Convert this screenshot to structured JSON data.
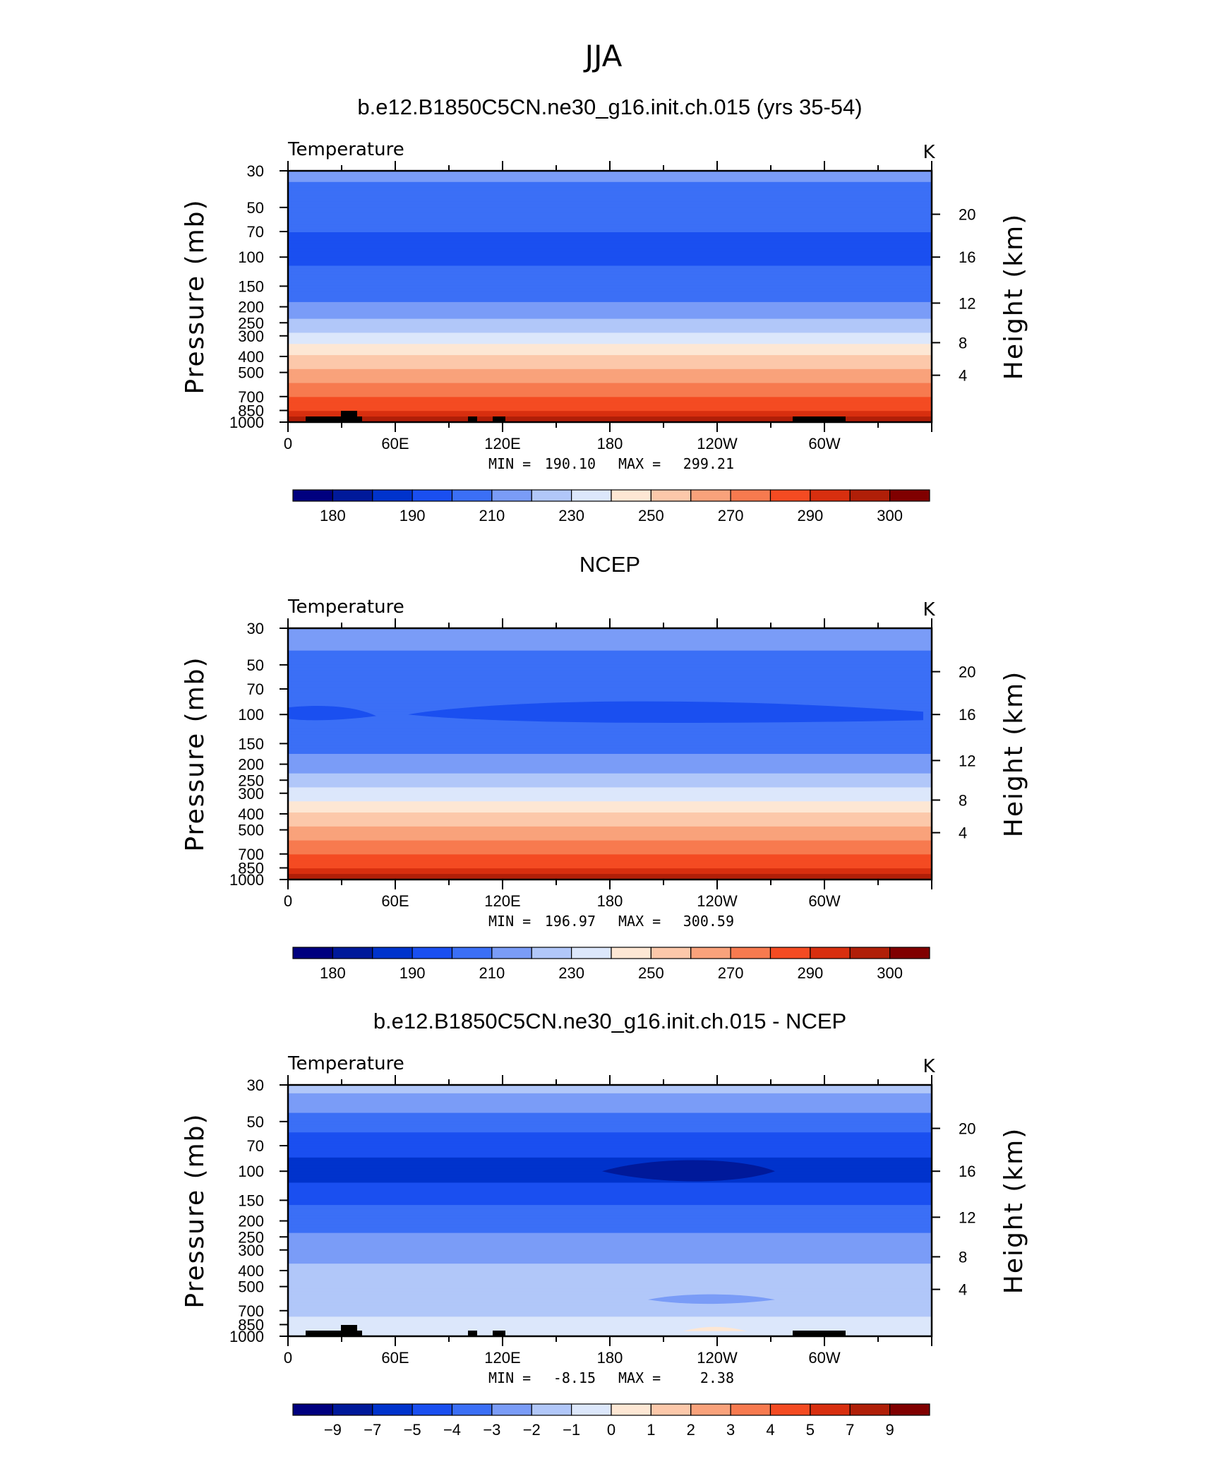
{
  "title": "JJA",
  "colors": {
    "levels": [
      "#00007f",
      "#00199a",
      "#0033cc",
      "#1a4ff0",
      "#3b6ff6",
      "#7a9cf7",
      "#b1c7f9",
      "#dce7fb",
      "#fde7d4",
      "#fcc8aa",
      "#f9a27b",
      "#f77a4f",
      "#f44b22",
      "#d82f0f",
      "#b01f08",
      "#800000"
    ]
  },
  "chart_data": [
    {
      "type": "contour",
      "subtitle": "b.e12.B1850C5CN.ne30_g16.init.ch.015 (yrs 35-54)",
      "variable": "Temperature",
      "units": "K",
      "ylabel": "Pressure (mb)",
      "ylabel_right": "Height (km)",
      "x_ticks": [
        "0",
        "60E",
        "120E",
        "180",
        "120W",
        "60W"
      ],
      "y_ticks": [
        "30",
        "50",
        "70",
        "100",
        "150",
        "200",
        "250",
        "300",
        "400",
        "500",
        "700",
        "850",
        "1000"
      ],
      "height_ticks": [
        "20",
        "16",
        "12",
        "8",
        "4"
      ],
      "min_label": "MIN =",
      "min": "190.10",
      "max_label": "MAX =",
      "max": "299.21",
      "colorbar_labels": [
        "180",
        "190",
        "210",
        "230",
        "250",
        "270",
        "290",
        "300"
      ],
      "profile": [
        [
          30,
          212
        ],
        [
          50,
          205
        ],
        [
          70,
          200
        ],
        [
          100,
          199
        ],
        [
          150,
          202
        ],
        [
          200,
          212
        ],
        [
          250,
          222
        ],
        [
          300,
          232
        ],
        [
          400,
          250
        ],
        [
          500,
          262
        ],
        [
          700,
          280
        ],
        [
          850,
          290
        ],
        [
          1000,
          298
        ]
      ]
    },
    {
      "type": "contour",
      "subtitle": "NCEP",
      "variable": "Temperature",
      "units": "K",
      "ylabel": "Pressure (mb)",
      "ylabel_right": "Height (km)",
      "x_ticks": [
        "0",
        "60E",
        "120E",
        "180",
        "120W",
        "60W"
      ],
      "y_ticks": [
        "30",
        "50",
        "70",
        "100",
        "150",
        "200",
        "250",
        "300",
        "400",
        "500",
        "700",
        "850",
        "1000"
      ],
      "height_ticks": [
        "20",
        "16",
        "12",
        "8",
        "4"
      ],
      "min_label": "MIN =",
      "min": "196.97",
      "max_label": "MAX =",
      "max": "300.59",
      "colorbar_labels": [
        "180",
        "190",
        "210",
        "230",
        "250",
        "270",
        "290",
        "300"
      ],
      "profile": [
        [
          30,
          215
        ],
        [
          50,
          207
        ],
        [
          70,
          203
        ],
        [
          100,
          201
        ],
        [
          150,
          205
        ],
        [
          200,
          214
        ],
        [
          250,
          224
        ],
        [
          300,
          234
        ],
        [
          400,
          250
        ],
        [
          500,
          262
        ],
        [
          700,
          280
        ],
        [
          850,
          290
        ],
        [
          1000,
          298
        ]
      ]
    },
    {
      "type": "contour",
      "subtitle": "b.e12.B1850C5CN.ne30_g16.init.ch.015 - NCEP",
      "variable": "Temperature",
      "units": "K",
      "ylabel": "Pressure (mb)",
      "ylabel_right": "Height (km)",
      "x_ticks": [
        "0",
        "60E",
        "120E",
        "180",
        "120W",
        "60W"
      ],
      "y_ticks": [
        "30",
        "50",
        "70",
        "100",
        "150",
        "200",
        "250",
        "300",
        "400",
        "500",
        "700",
        "850",
        "1000"
      ],
      "height_ticks": [
        "20",
        "16",
        "12",
        "8",
        "4"
      ],
      "min_label": "MIN =",
      "min": "-8.15",
      "max_label": "MAX =",
      "max": "2.38",
      "colorbar_labels": [
        "−9",
        "−7",
        "−5",
        "−4",
        "−3",
        "−2",
        "−1",
        "0",
        "1",
        "2",
        "3",
        "4",
        "5",
        "7",
        "9"
      ],
      "profile": [
        [
          30,
          -1.5
        ],
        [
          50,
          -3.5
        ],
        [
          70,
          -4.5
        ],
        [
          100,
          -5.5
        ],
        [
          150,
          -4.2
        ],
        [
          200,
          -3.5
        ],
        [
          250,
          -2.8
        ],
        [
          300,
          -2.5
        ],
        [
          400,
          -1.8
        ],
        [
          500,
          -1.5
        ],
        [
          700,
          -1.2
        ],
        [
          850,
          -0.8
        ],
        [
          1000,
          -0.6
        ]
      ]
    }
  ]
}
